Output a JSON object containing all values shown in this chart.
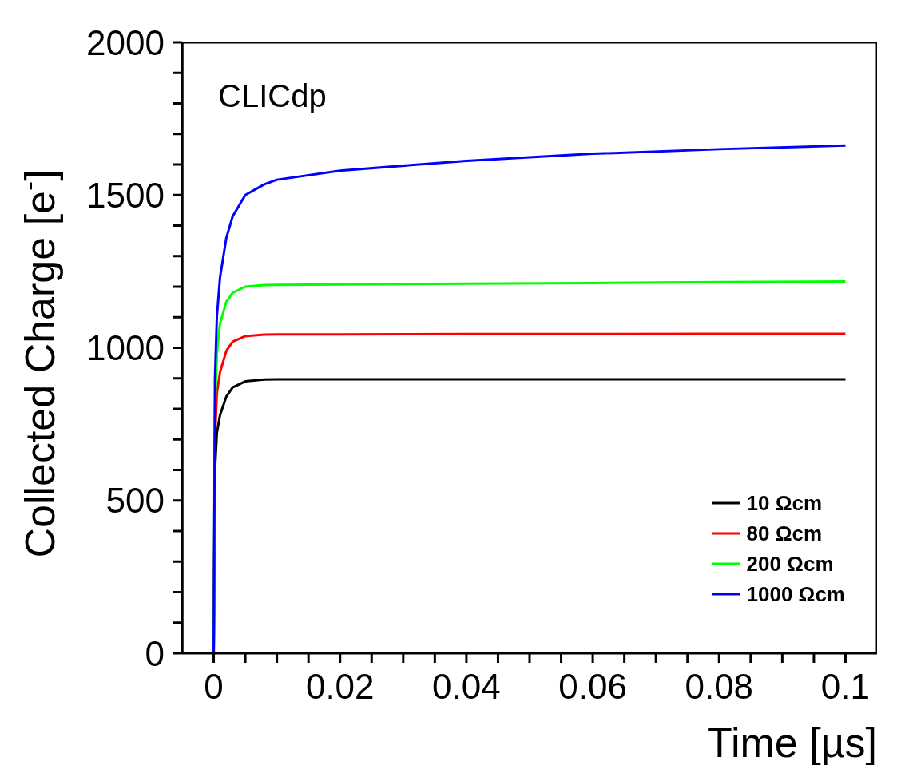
{
  "chart_data": {
    "type": "line",
    "xlabel": "Time [µs]",
    "ylabel": "Collected Charge [e$^{-}$]",
    "annotations": [
      "CLICdp"
    ],
    "x": [
      0,
      0.0002,
      0.0005,
      0.001,
      0.002,
      0.003,
      0.005,
      0.008,
      0.01,
      0.02,
      0.04,
      0.06,
      0.08,
      0.1
    ],
    "series": [
      {
        "name": "10 Ωcm",
        "color": "#000000",
        "values": [
          0,
          600,
          720,
          780,
          840,
          870,
          890,
          896,
          897,
          897,
          897,
          897,
          897,
          897
        ]
      },
      {
        "name": "80 Ωcm",
        "color": "#ff0000",
        "values": [
          0,
          700,
          850,
          920,
          990,
          1020,
          1038,
          1043,
          1044,
          1044,
          1045,
          1045,
          1046,
          1046
        ]
      },
      {
        "name": "200 Ωcm",
        "color": "#00ff00",
        "values": [
          0,
          800,
          980,
          1080,
          1150,
          1180,
          1200,
          1205,
          1206,
          1207,
          1210,
          1212,
          1215,
          1217
        ]
      },
      {
        "name": "1000 Ωcm",
        "color": "#0000ff",
        "values": [
          0,
          900,
          1100,
          1230,
          1360,
          1430,
          1500,
          1535,
          1550,
          1580,
          1612,
          1635,
          1650,
          1662
        ]
      }
    ],
    "xlim": [
      -0.005,
      0.105
    ],
    "xticks": [
      0,
      {
        "value": 0.005,
        "label": null
      },
      {
        "value": 0.01,
        "label": null
      },
      {
        "value": 0.015,
        "label": null
      },
      0.02,
      {
        "value": 0.025,
        "label": null
      },
      {
        "value": 0.03,
        "label": null
      },
      {
        "value": 0.035,
        "label": null
      },
      0.04,
      {
        "value": 0.045,
        "label": null
      },
      {
        "value": 0.05,
        "label": null
      },
      {
        "value": 0.055,
        "label": null
      },
      0.06,
      {
        "value": 0.065,
        "label": null
      },
      {
        "value": 0.07,
        "label": null
      },
      {
        "value": 0.075,
        "label": null
      },
      0.08,
      {
        "value": 0.085,
        "label": null
      },
      {
        "value": 0.09,
        "label": null
      },
      {
        "value": 0.095,
        "label": null
      },
      0.1
    ],
    "ylim": [
      0,
      2000
    ],
    "yticks": [
      0,
      {
        "value": 100,
        "label": null
      },
      {
        "value": 200,
        "label": null
      },
      {
        "value": 300,
        "label": null
      },
      {
        "value": 400,
        "label": null
      },
      500,
      {
        "value": 600,
        "label": null
      },
      {
        "value": 700,
        "label": null
      },
      {
        "value": 800,
        "label": null
      },
      {
        "value": 900,
        "label": null
      },
      1000,
      {
        "value": 1100,
        "label": null
      },
      {
        "value": 1200,
        "label": null
      },
      {
        "value": 1300,
        "label": null
      },
      {
        "value": 1400,
        "label": null
      },
      1500,
      {
        "value": 1600,
        "label": null
      },
      {
        "value": 1700,
        "label": null
      },
      {
        "value": 1800,
        "label": null
      },
      {
        "value": 1900,
        "label": null
      },
      2000
    ],
    "grid": false,
    "legend": "bottom right",
    "marker": "none",
    "line_style": "solid"
  }
}
